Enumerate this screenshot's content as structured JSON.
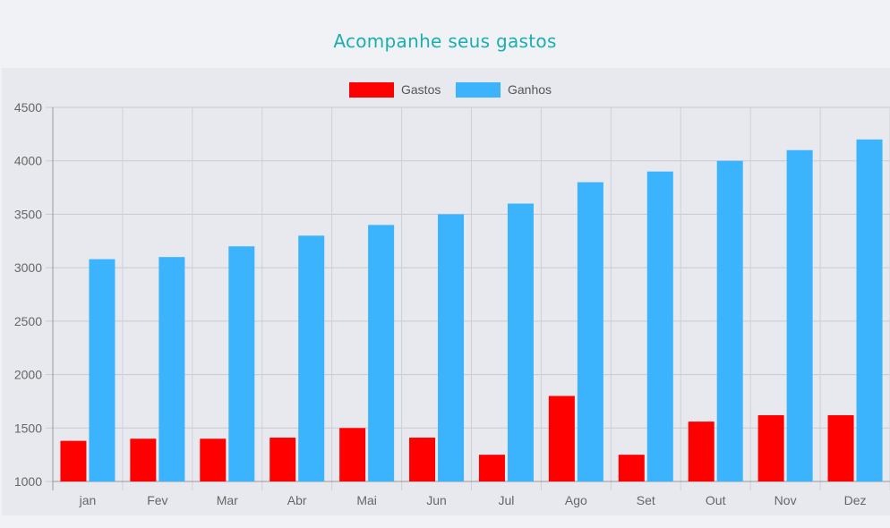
{
  "page": {
    "title": "Acompanhe seus gastos",
    "title_color": "#1aaeb0"
  },
  "chart_data": {
    "type": "bar",
    "categories": [
      "jan",
      "Fev",
      "Mar",
      "Abr",
      "Mai",
      "Jun",
      "Jul",
      "Ago",
      "Set",
      "Out",
      "Nov",
      "Dez"
    ],
    "series": [
      {
        "name": "Gastos",
        "color": "#ff0000",
        "values": [
          1380,
          1400,
          1400,
          1410,
          1500,
          1410,
          1250,
          1800,
          1250,
          1560,
          1620,
          1620
        ]
      },
      {
        "name": "Ganhos",
        "color": "#3bb4fd",
        "values": [
          3080,
          3100,
          3200,
          3300,
          3400,
          3500,
          3600,
          3800,
          3900,
          4000,
          4100,
          4200
        ]
      }
    ],
    "ylim": [
      1000,
      4500
    ],
    "yticks": [
      "4500",
      "4000",
      "3500",
      "3000",
      "2500",
      "2000",
      "1500",
      "1000"
    ],
    "grid": true,
    "legend_position": "top"
  }
}
